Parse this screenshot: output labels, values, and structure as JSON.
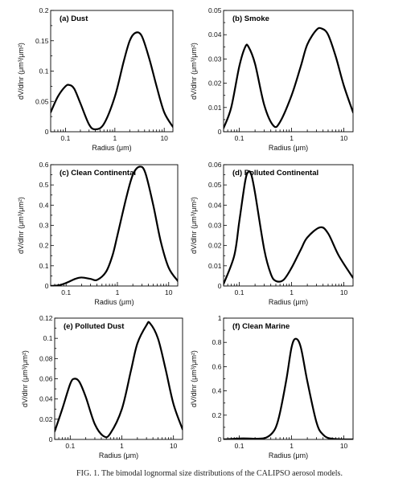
{
  "chart_data": [
    {
      "type": "line",
      "title": "(a) Dust",
      "xlabel": "Radius (μm)",
      "ylabel": "dV/dlnr (μm³/μm²)",
      "xscale": "log",
      "xlim": [
        0.05,
        15
      ],
      "ylim": [
        0,
        0.2
      ],
      "xticks": [
        0.1,
        1,
        10
      ],
      "xtick_labels": [
        "0.1",
        "1",
        "10"
      ],
      "yticks": [
        0,
        0.05,
        0.1,
        0.15,
        0.2
      ],
      "ytick_labels": [
        "0",
        "0.05",
        "0.1",
        "0.15",
        "0.2"
      ],
      "series": [
        {
          "x": [
            0.05,
            0.07,
            0.1,
            0.12,
            0.15,
            0.2,
            0.3,
            0.4,
            0.6,
            1.0,
            1.5,
            2.0,
            2.6,
            3.5,
            5.0,
            7.0,
            10.0,
            15.0
          ],
          "y": [
            0.032,
            0.058,
            0.075,
            0.077,
            0.071,
            0.047,
            0.012,
            0.004,
            0.013,
            0.058,
            0.115,
            0.15,
            0.163,
            0.158,
            0.12,
            0.075,
            0.032,
            0.008
          ]
        }
      ]
    },
    {
      "type": "line",
      "title": "(b) Smoke",
      "xlabel": "Radius (μm)",
      "ylabel": "dV/dlnr (μm³/μm²)",
      "xscale": "log",
      "xlim": [
        0.05,
        15
      ],
      "ylim": [
        0,
        0.05
      ],
      "xticks": [
        0.1,
        1,
        10
      ],
      "xtick_labels": [
        "0.1",
        "1",
        "10"
      ],
      "yticks": [
        0,
        0.01,
        0.02,
        0.03,
        0.04,
        0.05
      ],
      "ytick_labels": [
        "0",
        "0.01",
        "0.02",
        "0.03",
        "0.04",
        "0.05"
      ],
      "series": [
        {
          "x": [
            0.05,
            0.07,
            0.1,
            0.13,
            0.15,
            0.2,
            0.3,
            0.45,
            0.6,
            1.0,
            1.5,
            2.0,
            3.0,
            3.8,
            5.0,
            7.0,
            10.0,
            15.0
          ],
          "y": [
            0.0015,
            0.01,
            0.027,
            0.035,
            0.035,
            0.028,
            0.011,
            0.0025,
            0.004,
            0.015,
            0.027,
            0.036,
            0.042,
            0.0425,
            0.04,
            0.031,
            0.019,
            0.008
          ]
        }
      ]
    },
    {
      "type": "line",
      "title": "(c) Clean Continental",
      "xlabel": "Radius (μm)",
      "ylabel": "dV/dlnr (μm³/μm²)",
      "xscale": "log",
      "xlim": [
        0.05,
        15
      ],
      "ylim": [
        0,
        0.6
      ],
      "xticks": [
        0.1,
        1,
        10
      ],
      "xtick_labels": [
        "0.1",
        "1",
        "10"
      ],
      "yticks": [
        0,
        0.1,
        0.2,
        0.3,
        0.4,
        0.5,
        0.6
      ],
      "ytick_labels": [
        "0",
        "0.1",
        "0.2",
        "0.3",
        "0.4",
        "0.5",
        "0.6"
      ],
      "series": [
        {
          "x": [
            0.05,
            0.07,
            0.1,
            0.15,
            0.2,
            0.3,
            0.4,
            0.6,
            0.8,
            1.0,
            1.5,
            2.0,
            2.7,
            3.5,
            5.0,
            7.0,
            10.0,
            15.0
          ],
          "y": [
            0.0,
            0.003,
            0.015,
            0.035,
            0.042,
            0.035,
            0.03,
            0.07,
            0.15,
            0.25,
            0.44,
            0.55,
            0.59,
            0.56,
            0.4,
            0.22,
            0.09,
            0.025
          ]
        }
      ]
    },
    {
      "type": "line",
      "title": "(d) Polluted Continental",
      "xlabel": "Radius (μm)",
      "ylabel": "dV/dlnr (μm³/μm²)",
      "xscale": "log",
      "xlim": [
        0.05,
        15
      ],
      "ylim": [
        0,
        0.06
      ],
      "xticks": [
        0.1,
        1,
        10
      ],
      "xtick_labels": [
        "0.1",
        "1",
        "10"
      ],
      "yticks": [
        0,
        0.01,
        0.02,
        0.03,
        0.04,
        0.05,
        0.06
      ],
      "ytick_labels": [
        "0",
        "0.01",
        "0.02",
        "0.03",
        "0.04",
        "0.05",
        "0.06"
      ],
      "series": [
        {
          "x": [
            0.05,
            0.08,
            0.1,
            0.13,
            0.15,
            0.17,
            0.2,
            0.3,
            0.4,
            0.5,
            0.7,
            1.0,
            1.5,
            2.0,
            3.5,
            5.0,
            8.0,
            15.0
          ],
          "y": [
            0.001,
            0.015,
            0.032,
            0.052,
            0.0565,
            0.055,
            0.046,
            0.018,
            0.006,
            0.0025,
            0.003,
            0.009,
            0.018,
            0.024,
            0.029,
            0.026,
            0.015,
            0.004
          ]
        }
      ]
    },
    {
      "type": "line",
      "title": "(e) Polluted Dust",
      "xlabel": "Radius (μm)",
      "ylabel": "dV/dlnr (μm³/μm²)",
      "xscale": "log",
      "xlim": [
        0.05,
        15
      ],
      "ylim": [
        0,
        0.12
      ],
      "xticks": [
        0.1,
        1,
        10
      ],
      "xtick_labels": [
        "0.1",
        "1",
        "10"
      ],
      "yticks": [
        0,
        0.02,
        0.04,
        0.06,
        0.08,
        0.1,
        0.12
      ],
      "ytick_labels": [
        "0",
        "0.02",
        "0.04",
        "0.06",
        "0.08",
        "0.1",
        "0.12"
      ],
      "series": [
        {
          "x": [
            0.05,
            0.07,
            0.1,
            0.12,
            0.15,
            0.2,
            0.3,
            0.45,
            0.6,
            1.0,
            1.5,
            2.0,
            3.0,
            3.5,
            5.0,
            7.0,
            10.0,
            15.0
          ],
          "y": [
            0.008,
            0.03,
            0.055,
            0.06,
            0.057,
            0.042,
            0.015,
            0.003,
            0.006,
            0.03,
            0.068,
            0.095,
            0.113,
            0.115,
            0.1,
            0.07,
            0.035,
            0.01
          ]
        }
      ]
    },
    {
      "type": "line",
      "title": "(f) Clean Marine",
      "xlabel": "Radius (μm)",
      "ylabel": "dV/dlnr (μm³/μm²)",
      "xscale": "log",
      "xlim": [
        0.05,
        15
      ],
      "ylim": [
        0,
        1
      ],
      "xticks": [
        0.1,
        1,
        10
      ],
      "xtick_labels": [
        "0.1",
        "1",
        "10"
      ],
      "yticks": [
        0,
        0.2,
        0.4,
        0.6,
        0.8,
        1
      ],
      "ytick_labels": [
        "0",
        "0.2",
        "0.4",
        "0.6",
        "0.8",
        "1"
      ],
      "series": [
        {
          "x": [
            0.05,
            0.08,
            0.1,
            0.15,
            0.2,
            0.3,
            0.4,
            0.5,
            0.6,
            0.8,
            1.0,
            1.2,
            1.5,
            2.0,
            3.0,
            4.0,
            6.0,
            15.0
          ],
          "y": [
            0.0,
            0.005,
            0.008,
            0.008,
            0.006,
            0.01,
            0.04,
            0.1,
            0.22,
            0.5,
            0.76,
            0.83,
            0.76,
            0.48,
            0.14,
            0.04,
            0.005,
            0.0
          ]
        }
      ]
    }
  ],
  "caption": "FIG. 1. The bimodal lognormal size distributions of the CALIPSO aerosol models."
}
